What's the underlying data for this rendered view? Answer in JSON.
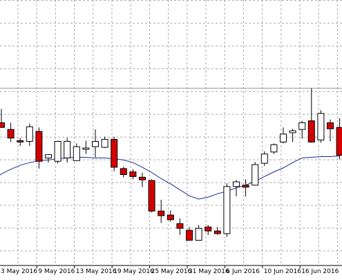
{
  "chart_data": {
    "type": "candlestick",
    "title": "",
    "xlabel": "",
    "ylabel": "",
    "grid": true,
    "x_tick_labels": [
      "3 May 2016",
      "9 May 2016",
      "13 May 2016",
      "19 May 2016",
      "25 May 2016",
      "31 May 2016",
      "6 Jun 2016",
      "10 Jun 2016",
      "16 Jun 2016"
    ],
    "ylim": [
      0,
      400
    ],
    "reference_line_value": 267,
    "colors": {
      "bull_fill": "#ffffff",
      "bear_fill": "#d40000",
      "candle_outline": "#000000",
      "moving_average": "#1a2a9c",
      "grid": "#a9a9a9",
      "reference_line": "#8a9aa8"
    },
    "candles": [
      {
        "o": 215,
        "h": 236,
        "l": 208,
        "c": 208
      },
      {
        "o": 205,
        "h": 215,
        "l": 186,
        "c": 192
      },
      {
        "o": 188,
        "h": 192,
        "l": 180,
        "c": 186
      },
      {
        "o": 187,
        "h": 214,
        "l": 180,
        "c": 209
      },
      {
        "o": 202,
        "h": 208,
        "l": 146,
        "c": 157
      },
      {
        "o": 162,
        "h": 168,
        "l": 155,
        "c": 167
      },
      {
        "o": 157,
        "h": 188,
        "l": 154,
        "c": 187
      },
      {
        "o": 162,
        "h": 192,
        "l": 155,
        "c": 187
      },
      {
        "o": 158,
        "h": 184,
        "l": 158,
        "c": 179
      },
      {
        "o": 175,
        "h": 188,
        "l": 168,
        "c": 177
      },
      {
        "o": 179,
        "h": 205,
        "l": 163,
        "c": 187
      },
      {
        "o": 178,
        "h": 194,
        "l": 177,
        "c": 190
      },
      {
        "o": 190,
        "h": 194,
        "l": 142,
        "c": 148
      },
      {
        "o": 146,
        "h": 149,
        "l": 133,
        "c": 137
      },
      {
        "o": 141,
        "h": 145,
        "l": 130,
        "c": 134
      },
      {
        "o": 133,
        "h": 140,
        "l": 118,
        "c": 129
      },
      {
        "o": 128,
        "h": 130,
        "l": 80,
        "c": 82
      },
      {
        "o": 82,
        "h": 99,
        "l": 64,
        "c": 75
      },
      {
        "o": 76,
        "h": 83,
        "l": 66,
        "c": 69
      },
      {
        "o": 63,
        "h": 71,
        "l": 46,
        "c": 56
      },
      {
        "o": 53,
        "h": 58,
        "l": 38,
        "c": 38
      },
      {
        "o": 38,
        "h": 61,
        "l": 38,
        "c": 56
      },
      {
        "o": 58,
        "h": 61,
        "l": 46,
        "c": 52
      },
      {
        "o": 52,
        "h": 58,
        "l": 46,
        "c": 48
      },
      {
        "o": 48,
        "h": 124,
        "l": 43,
        "c": 119
      },
      {
        "o": 119,
        "h": 129,
        "l": 104,
        "c": 126
      },
      {
        "o": 121,
        "h": 130,
        "l": 104,
        "c": 118
      },
      {
        "o": 121,
        "h": 156,
        "l": 121,
        "c": 152
      },
      {
        "o": 154,
        "h": 172,
        "l": 150,
        "c": 168
      },
      {
        "o": 171,
        "h": 184,
        "l": 168,
        "c": 182
      },
      {
        "o": 186,
        "h": 208,
        "l": 184,
        "c": 198
      },
      {
        "o": 200,
        "h": 206,
        "l": 186,
        "c": 203
      },
      {
        "o": 205,
        "h": 218,
        "l": 191,
        "c": 215
      },
      {
        "o": 218,
        "h": 267,
        "l": 185,
        "c": 186
      },
      {
        "o": 189,
        "h": 234,
        "l": 185,
        "c": 229
      },
      {
        "o": 215,
        "h": 220,
        "l": 187,
        "c": 206
      },
      {
        "o": 208,
        "h": 222,
        "l": 160,
        "c": 166
      }
    ],
    "moving_average": [
      138,
      145,
      151,
      155,
      158,
      159,
      161,
      162,
      163,
      163,
      162,
      162,
      161,
      159,
      155,
      148,
      140,
      131,
      123,
      114,
      105,
      100,
      103,
      108,
      112,
      117,
      121,
      127,
      134,
      141,
      147,
      155,
      162,
      163,
      164,
      164,
      165
    ]
  }
}
